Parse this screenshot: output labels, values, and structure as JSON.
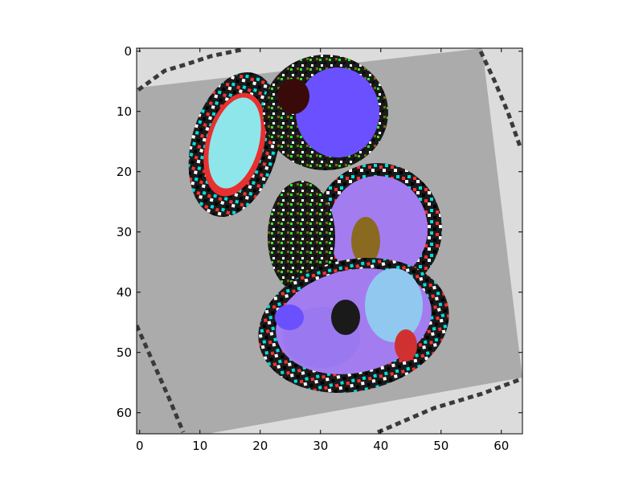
{
  "chart_data": {
    "type": "heatmap",
    "title": "",
    "xlabel": "",
    "ylabel": "",
    "xlim": [
      -0.5,
      63.5
    ],
    "ylim": [
      63.5,
      -0.5
    ],
    "x_ticks": [
      {
        "value": 0,
        "label": "0"
      },
      {
        "value": 10,
        "label": "10"
      },
      {
        "value": 20,
        "label": "20"
      },
      {
        "value": 30,
        "label": "30"
      },
      {
        "value": 40,
        "label": "40"
      },
      {
        "value": 50,
        "label": "50"
      },
      {
        "value": 60,
        "label": "60"
      }
    ],
    "y_ticks": [
      {
        "value": 0,
        "label": "0"
      },
      {
        "value": 10,
        "label": "10"
      },
      {
        "value": 20,
        "label": "20"
      },
      {
        "value": 30,
        "label": "30"
      },
      {
        "value": 40,
        "label": "40"
      },
      {
        "value": 50,
        "label": "50"
      },
      {
        "value": 60,
        "label": "60"
      }
    ],
    "grid": false,
    "colors": {
      "background": "#ababab",
      "corner": "#dcdcdc",
      "cyan": "#8fe6ea",
      "violet": "#a37cf0",
      "blue": "#6a50ff",
      "red": "#e83030",
      "dark": "#3a2a1a"
    }
  }
}
